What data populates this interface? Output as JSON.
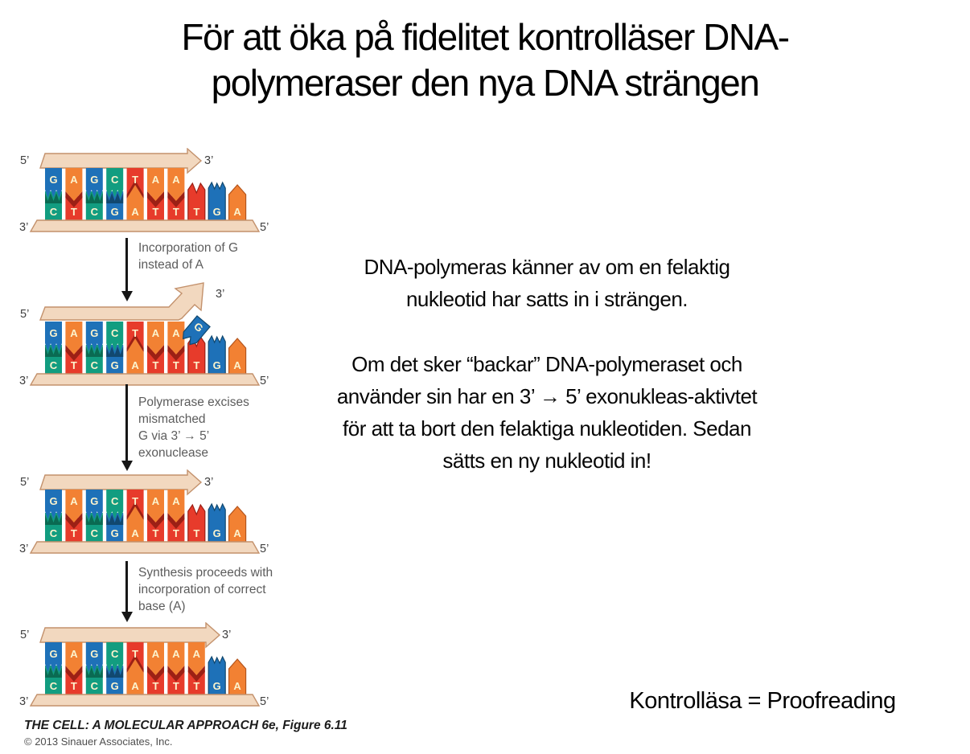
{
  "title": {
    "lines": [
      "För att öka på fidelitet kontrolläser DNA-",
      "polymeraser den nya DNA strängen"
    ]
  },
  "right_column": {
    "para1_lines": [
      "DNA-polymeras känner av om en felaktig",
      "nukleotid har satts in i strängen."
    ],
    "para2_lines": [
      "Om det sker “backar” DNA-polymeraset och",
      "använder sin har en 3’ → 5’ exonukleas-aktivtet",
      "för att ta bort den felaktiga nukleotiden. Sedan",
      "sätts en ny nukleotid in!"
    ],
    "footnote": "Kontrolläsa = Proofreading"
  },
  "figure": {
    "credit_line": "THE CELL: A MOLECULAR APPROACH 6e, Figure 6.11",
    "copyright_line": "© 2013 Sinauer Associates, Inc.",
    "strand_end_labels": {
      "five_prime": "5’",
      "three_prime": "3’"
    },
    "letter_color": "#fcf3cd",
    "backbone_fill": "#f2d8bf",
    "backbone_stroke": "#c3916c",
    "base_colors": {
      "G": "#1e71b8",
      "A": "#f28133",
      "C": "#129d80",
      "T": "#e73b2b"
    },
    "base_dark_colors": {
      "G": "#11486f",
      "A": "#b4541c",
      "C": "#0a6a52",
      "T": "#9c2015"
    },
    "template_strand": [
      "C",
      "T",
      "C",
      "G",
      "A",
      "T",
      "T",
      "T",
      "G",
      "A"
    ],
    "panels": [
      {
        "name": "correct-strand-before-error",
        "top_strand": [
          "G",
          "A",
          "G",
          "C",
          "T",
          "A",
          "A"
        ],
        "arrow": "straight",
        "floating_base": null
      },
      {
        "name": "mismatched-G-incorporated",
        "top_strand": [
          "G",
          "A",
          "G",
          "C",
          "T",
          "A",
          "A"
        ],
        "arrow": "bent",
        "floating_base": "G"
      },
      {
        "name": "mismatch-excised",
        "top_strand": [
          "G",
          "A",
          "G",
          "C",
          "T",
          "A",
          "A"
        ],
        "arrow": "straight",
        "floating_base": null
      },
      {
        "name": "correct-base-incorporated",
        "top_strand": [
          "G",
          "A",
          "G",
          "C",
          "T",
          "A",
          "A",
          "A"
        ],
        "arrow": "long",
        "floating_base": null
      }
    ],
    "steps": [
      {
        "lines": [
          "Incorporation of G",
          "instead of A"
        ]
      },
      {
        "lines": [
          "Polymerase excises",
          "mismatched",
          "G via 3’ → 5’",
          "exonuclease"
        ]
      },
      {
        "lines": [
          "Synthesis proceeds with",
          "incorporation of correct",
          "base (A)"
        ]
      }
    ]
  }
}
